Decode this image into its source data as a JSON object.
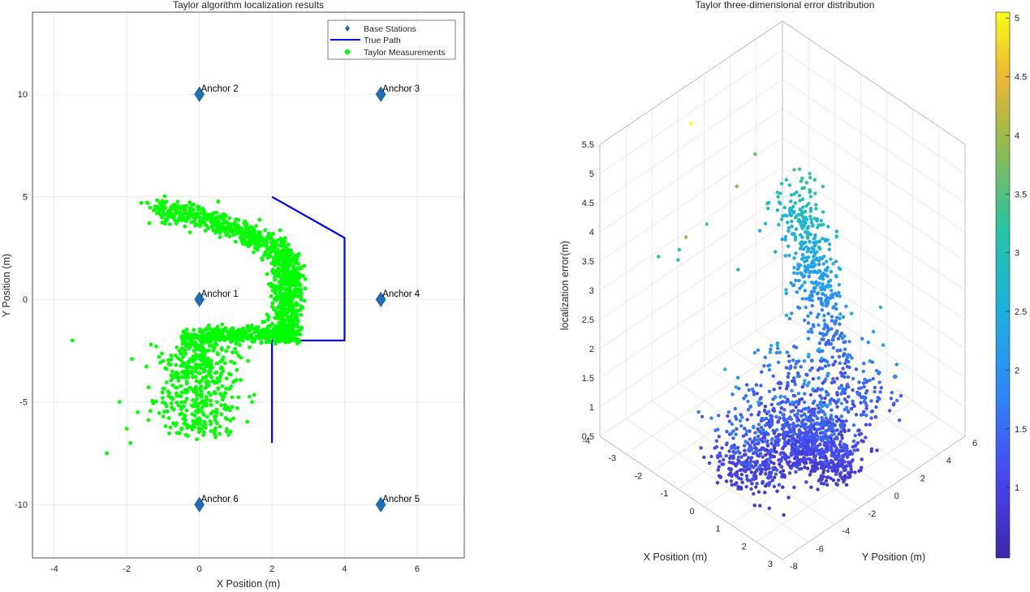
{
  "chart_data": [
    {
      "type": "scatter",
      "title": "Taylor algorithm localization results",
      "xlabel": "X Position (m)",
      "ylabel": "Y Position (m)",
      "xlim": [
        -4.6,
        7.3
      ],
      "ylim": [
        -12.6,
        14.0
      ],
      "xticks": [
        -4,
        -2,
        0,
        2,
        4,
        6
      ],
      "yticks": [
        -10,
        -5,
        0,
        5,
        10
      ],
      "grid": true,
      "legend_position": "top-right",
      "legend": [
        "Base Stations",
        "True Path",
        "Taylor Measurements"
      ],
      "anchors": [
        {
          "name": "Anchor 1",
          "x": 0,
          "y": 0
        },
        {
          "name": "Anchor 2",
          "x": 0,
          "y": 10
        },
        {
          "name": "Anchor 3",
          "x": 5,
          "y": 10
        },
        {
          "name": "Anchor 4",
          "x": 5,
          "y": 0
        },
        {
          "name": "Anchor 5",
          "x": 5,
          "y": -10
        },
        {
          "name": "Anchor 6",
          "x": 0,
          "y": -10
        }
      ],
      "true_path": {
        "x": [
          2,
          2,
          4,
          4,
          2,
          2
        ],
        "y": [
          5,
          5,
          3,
          -2,
          -2,
          -7
        ]
      },
      "measurements_summary": {
        "count_approx": 2000,
        "description": "Green scatter cluster forming an arc around the true path: upper band from about (-1.5, 4.5) to (2.5, 2), dense vertical band near x≈2.5 from y≈3 to y≈-2, lower horizontal band along y≈-2 from x≈-0.5 to x≈2.5, and a vertical blob from x≈-1.5 to 1.5 spanning y≈-2 to -6.5; a few outliers near (-3.5,-2), (-2.5,-7.5), (-2.2,-5)."
      },
      "colors": {
        "anchor": "#1f6fb5",
        "path": "#0000ff",
        "measurement": "#00ff00"
      }
    },
    {
      "type": "scatter3d",
      "title": "Taylor three-dimensional error distribution",
      "xlabel": "X Position (m)",
      "ylabel": "Y Position (m)",
      "zlabel": "localization error(m)",
      "xlim": [
        -4,
        3
      ],
      "ylim": [
        -8,
        6
      ],
      "zlim": [
        0.5,
        5.5
      ],
      "xticks": [
        -4,
        -3,
        -2,
        -1,
        0,
        1,
        2,
        3
      ],
      "yticks": [
        -8,
        -6,
        -4,
        -2,
        0,
        2,
        4,
        6
      ],
      "zticks": [
        0.5,
        1,
        1.5,
        2,
        2.5,
        3,
        3.5,
        4,
        4.5,
        5,
        5.5
      ],
      "zticklabels": [
        "0.5",
        "1",
        "1.5",
        "2",
        "2.5",
        "3",
        "3.5",
        "4",
        "4.5",
        "5",
        "5.5"
      ],
      "grid": true,
      "colormap": "parula",
      "colorbar": {
        "range": [
          0.4,
          5.05
        ],
        "ticks": [
          1,
          1.5,
          2,
          2.5,
          3,
          3.5,
          4,
          4.5,
          5
        ],
        "ticklabels": [
          "1",
          "1.5",
          "2",
          "2.5",
          "3",
          "3.5",
          "4",
          "4.5",
          "5"
        ]
      },
      "highlight_points": [
        {
          "x": -3.5,
          "y": -2.0,
          "error": 5.1
        },
        {
          "x": -2.2,
          "y": -5.0,
          "error": 4.0
        },
        {
          "x": -3.9,
          "y": 3.7,
          "error": 3.6
        },
        {
          "x": -3.0,
          "y": 0.5,
          "error": 3.8
        }
      ]
    }
  ]
}
